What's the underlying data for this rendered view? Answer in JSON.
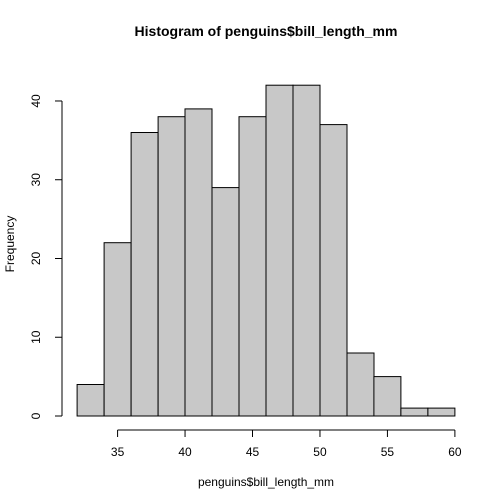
{
  "chart_data": {
    "type": "bar",
    "title": "Histogram of penguins$bill_length_mm",
    "xlabel": "penguins$bill_length_mm",
    "ylabel": "Frequency",
    "bin_edges": [
      32,
      34,
      36,
      38,
      40,
      42,
      44,
      46,
      48,
      50,
      52,
      54,
      56,
      58,
      60
    ],
    "values": [
      4,
      22,
      36,
      38,
      39,
      29,
      38,
      42,
      42,
      37,
      8,
      5,
      1,
      1
    ],
    "xlim": [
      32,
      60
    ],
    "ylim": [
      0,
      42
    ],
    "x_ticks": [
      35,
      40,
      45,
      50,
      55,
      60
    ],
    "y_ticks": [
      0,
      10,
      20,
      30,
      40
    ],
    "grid": false,
    "colors": {
      "bar_fill": "#c8c8c8",
      "bar_stroke": "#000000"
    }
  }
}
